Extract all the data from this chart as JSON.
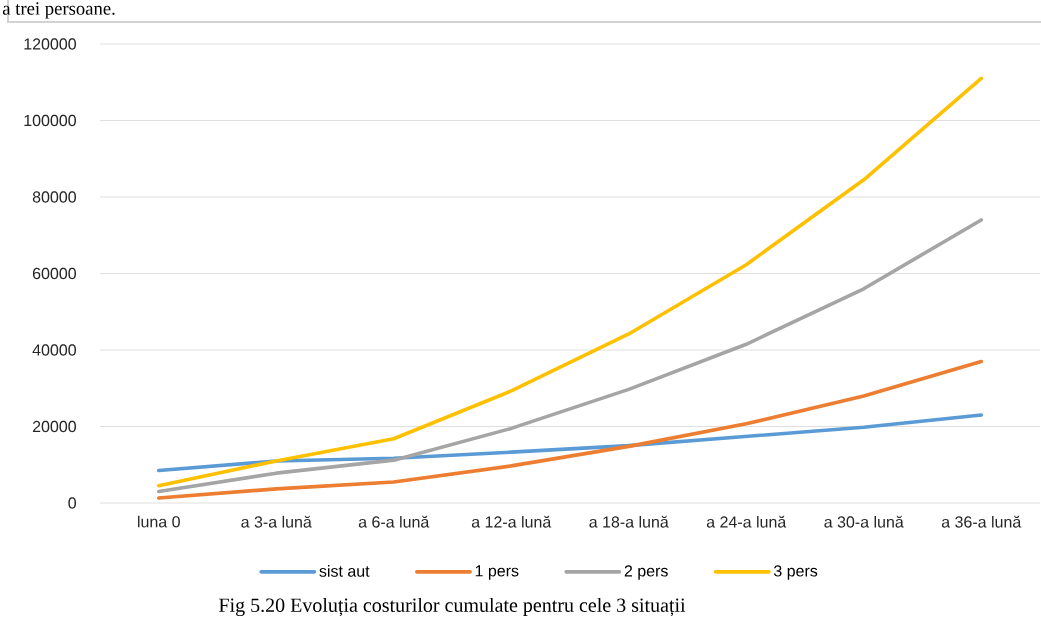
{
  "chart_data": {
    "type": "line",
    "categories": [
      "luna 0",
      "a 3-a lună",
      "a 6-a lună",
      "a 12-a lună",
      "a 18-a lună",
      "a 24-a lună",
      "a 30-a lună",
      "a 36-a lună"
    ],
    "series": [
      {
        "name": "sist aut",
        "color": "#5b9bd5",
        "values": [
          8500,
          11000,
          11700,
          13300,
          15000,
          17400,
          19800,
          23000
        ]
      },
      {
        "name": "1 pers",
        "color": "#ed7d31",
        "values": [
          1300,
          3700,
          5500,
          9700,
          14800,
          20700,
          28000,
          37000
        ]
      },
      {
        "name": "2 pers",
        "color": "#a5a5a5",
        "values": [
          3000,
          7800,
          11200,
          19500,
          29700,
          41500,
          56000,
          74000
        ]
      },
      {
        "name": "3 pers",
        "color": "#ffc000",
        "values": [
          4500,
          11000,
          16800,
          29300,
          44200,
          62300,
          84500,
          111000
        ]
      }
    ],
    "ylim": [
      0,
      120000
    ],
    "yticks": [
      0,
      20000,
      40000,
      60000,
      80000,
      100000,
      120000
    ],
    "grid": "y",
    "legend": "bottom",
    "marker": "none",
    "line_style": "solid",
    "annotations": [
      "Fig 5.20 Evoluția costurilor cumulate pentru cele 3 situații",
      "a trei persoane."
    ]
  }
}
